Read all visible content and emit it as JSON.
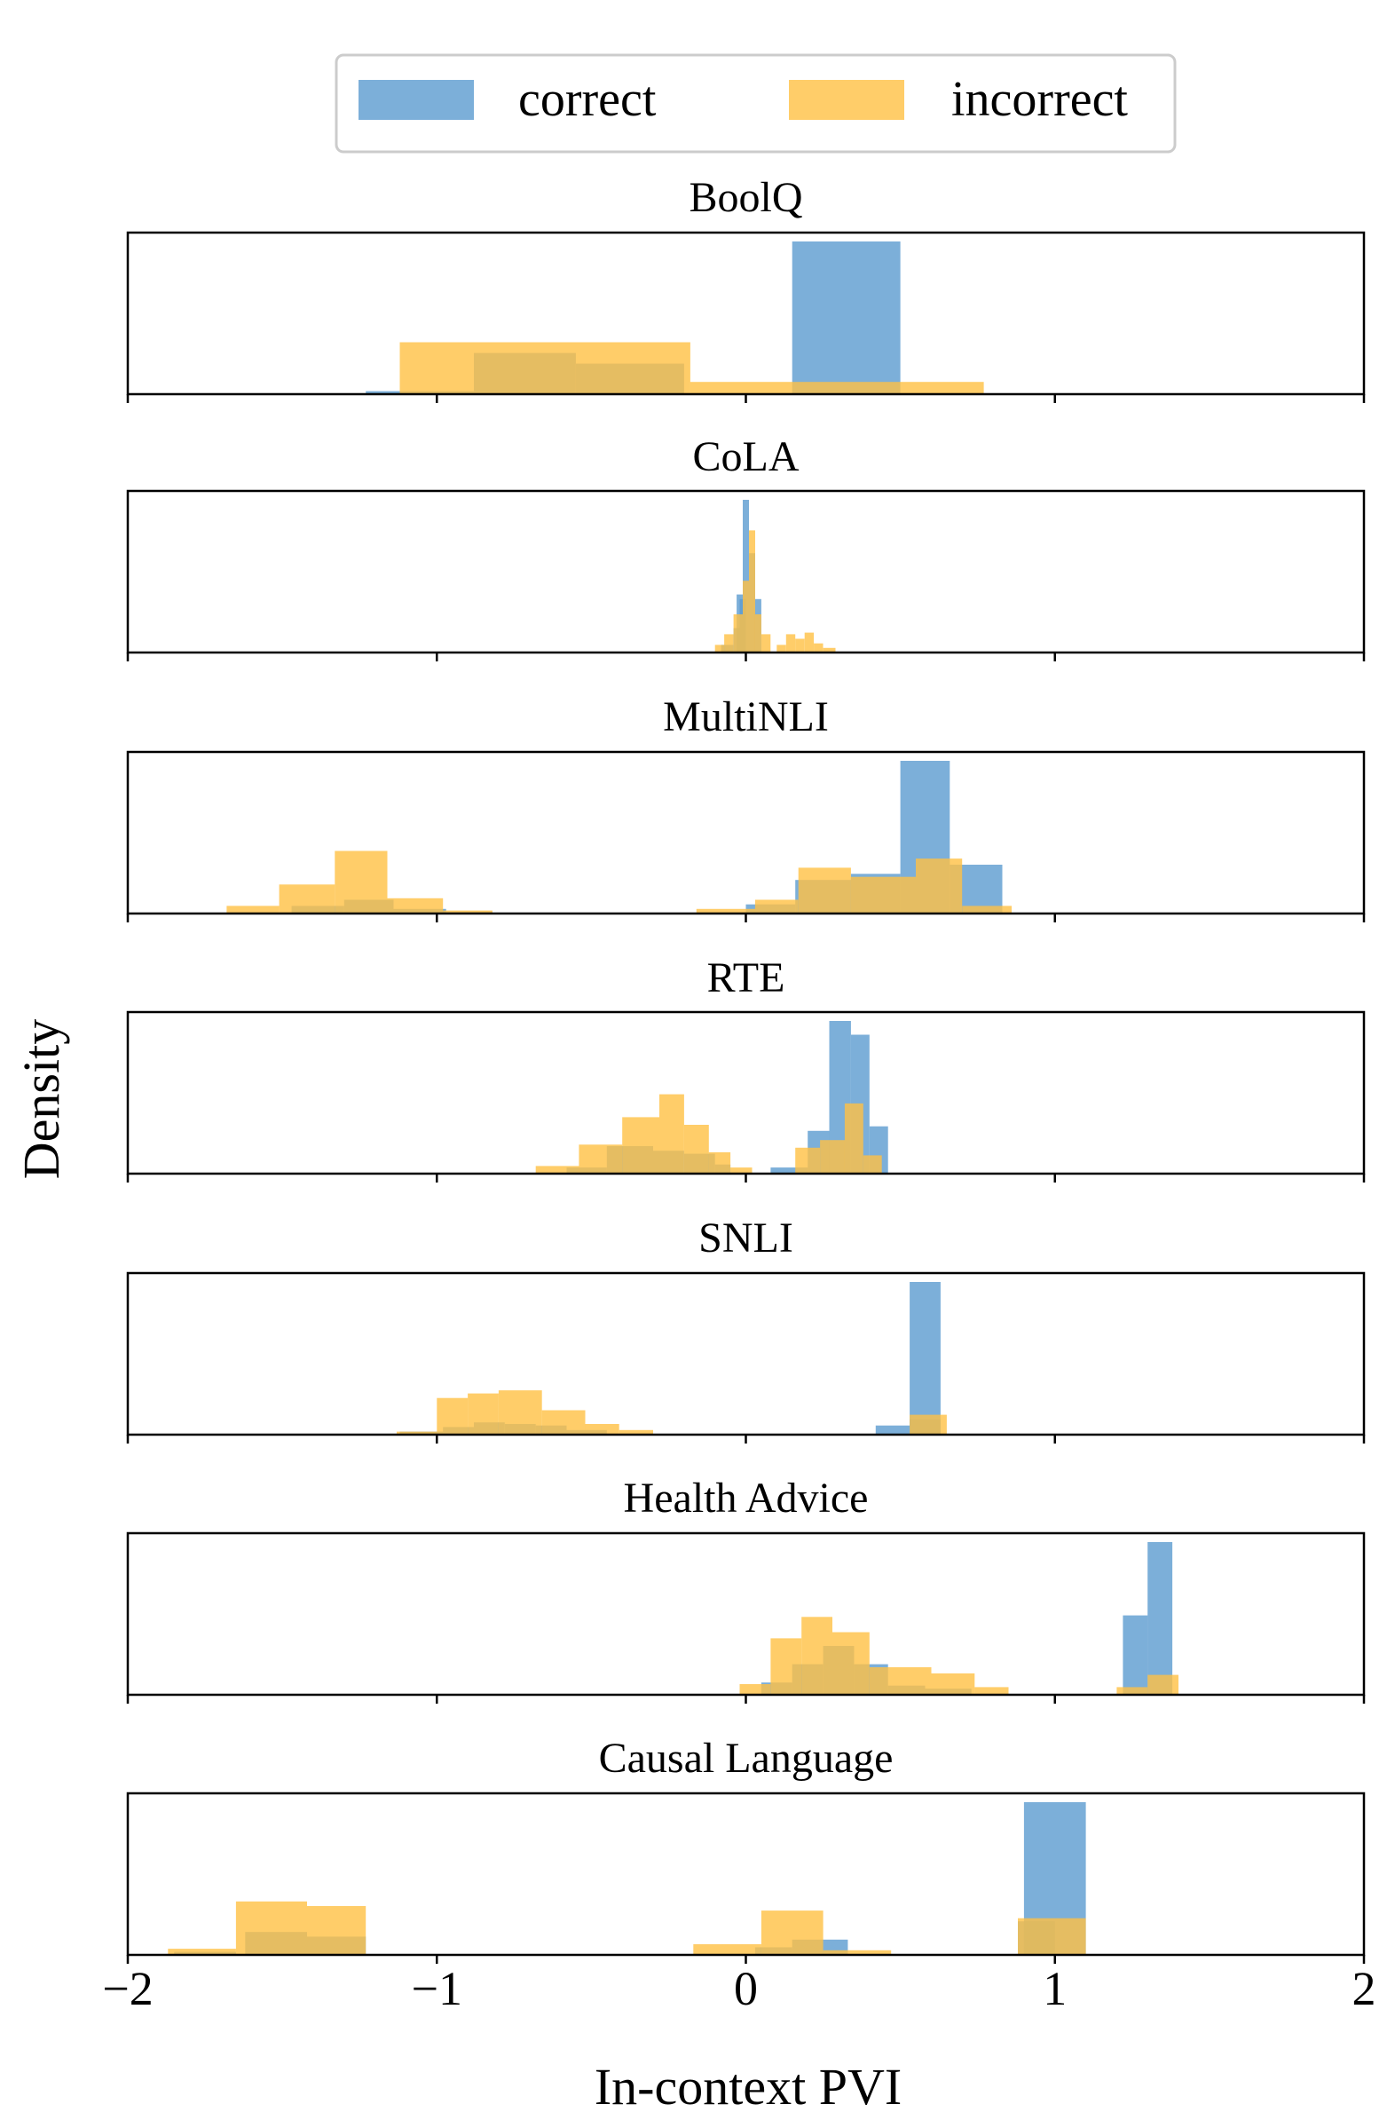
{
  "chart_data": {
    "type": "histogram",
    "xlabel": "In-context PVI",
    "ylabel": "Density",
    "xlim": [
      -2,
      2
    ],
    "x_ticks": [
      -2,
      -1,
      0,
      1,
      2
    ],
    "x_tick_labels": [
      "−2",
      "−1",
      "0",
      "1",
      "2"
    ],
    "legend": {
      "placement": "top-center",
      "entries": [
        {
          "label": "correct",
          "color": "#5b9bd0"
        },
        {
          "label": "incorrect",
          "color": "#ffc144"
        }
      ]
    },
    "colors": {
      "correct": "#5b9bd0",
      "incorrect": "#ffc144"
    },
    "opacity": 0.8,
    "panels": [
      {
        "title": "BoolQ",
        "series": [
          {
            "name": "correct",
            "bins": [
              [
                -1.23,
                -0.88,
                0.02
              ],
              [
                -0.88,
                -0.55,
                0.27
              ],
              [
                -0.55,
                -0.2,
                0.2
              ],
              [
                0.15,
                0.5,
                1.0
              ]
            ]
          },
          {
            "name": "incorrect",
            "bins": [
              [
                -1.12,
                -0.18,
                0.34
              ],
              [
                -0.18,
                0.77,
                0.08
              ]
            ]
          }
        ]
      },
      {
        "title": "CoLA",
        "series": [
          {
            "name": "correct",
            "bins": [
              [
                -0.08,
                -0.04,
                0.05
              ],
              [
                -0.04,
                -0.02,
                0.16
              ],
              [
                -0.02,
                0.0,
                0.35
              ],
              [
                -0.03,
                -0.01,
                0.38
              ],
              [
                -0.01,
                0.01,
                1.0
              ],
              [
                0.01,
                0.03,
                0.65
              ],
              [
                0.03,
                0.05,
                0.35
              ]
            ]
          },
          {
            "name": "incorrect",
            "bins": [
              [
                -0.1,
                -0.07,
                0.05
              ],
              [
                -0.07,
                -0.04,
                0.12
              ],
              [
                -0.04,
                -0.01,
                0.25
              ],
              [
                -0.01,
                0.01,
                0.47
              ],
              [
                0.01,
                0.03,
                0.8
              ],
              [
                0.03,
                0.05,
                0.25
              ],
              [
                0.05,
                0.08,
                0.12
              ],
              [
                0.1,
                0.13,
                0.05
              ],
              [
                0.13,
                0.16,
                0.12
              ],
              [
                0.16,
                0.19,
                0.09
              ],
              [
                0.19,
                0.22,
                0.13
              ],
              [
                0.22,
                0.25,
                0.06
              ],
              [
                0.25,
                0.29,
                0.03
              ]
            ]
          }
        ]
      },
      {
        "title": "MultiNLI",
        "series": [
          {
            "name": "correct",
            "bins": [
              [
                -1.47,
                -1.3,
                0.05
              ],
              [
                -1.3,
                -1.14,
                0.09
              ],
              [
                -1.14,
                -0.97,
                0.03
              ],
              [
                -0.97,
                -0.82,
                0.01
              ],
              [
                0.0,
                0.16,
                0.06
              ],
              [
                0.16,
                0.34,
                0.22
              ],
              [
                0.34,
                0.5,
                0.26
              ],
              [
                0.5,
                0.66,
                1.0
              ],
              [
                0.66,
                0.83,
                0.32
              ]
            ]
          },
          {
            "name": "incorrect",
            "bins": [
              [
                -1.68,
                -1.51,
                0.05
              ],
              [
                -1.51,
                -1.33,
                0.19
              ],
              [
                -1.33,
                -1.16,
                0.41
              ],
              [
                -1.16,
                -0.98,
                0.1
              ],
              [
                -0.98,
                -0.82,
                0.02
              ],
              [
                -0.16,
                0.03,
                0.03
              ],
              [
                0.03,
                0.17,
                0.09
              ],
              [
                0.17,
                0.34,
                0.3
              ],
              [
                0.34,
                0.55,
                0.24
              ],
              [
                0.55,
                0.7,
                0.36
              ],
              [
                0.7,
                0.86,
                0.05
              ]
            ]
          }
        ]
      },
      {
        "title": "RTE",
        "series": [
          {
            "name": "correct",
            "bins": [
              [
                -0.58,
                -0.45,
                0.04
              ],
              [
                -0.45,
                -0.3,
                0.18
              ],
              [
                -0.3,
                -0.2,
                0.15
              ],
              [
                -0.2,
                -0.1,
                0.13
              ],
              [
                -0.1,
                -0.05,
                0.06
              ],
              [
                0.08,
                0.2,
                0.04
              ],
              [
                0.2,
                0.27,
                0.28
              ],
              [
                0.27,
                0.34,
                1.0
              ],
              [
                0.34,
                0.4,
                0.91
              ],
              [
                0.4,
                0.46,
                0.31
              ]
            ]
          },
          {
            "name": "incorrect",
            "bins": [
              [
                -0.68,
                -0.54,
                0.05
              ],
              [
                -0.54,
                -0.4,
                0.19
              ],
              [
                -0.4,
                -0.28,
                0.37
              ],
              [
                -0.28,
                -0.2,
                0.52
              ],
              [
                -0.2,
                -0.12,
                0.32
              ],
              [
                -0.12,
                -0.05,
                0.14
              ],
              [
                -0.05,
                0.02,
                0.04
              ],
              [
                0.16,
                0.24,
                0.17
              ],
              [
                0.24,
                0.32,
                0.22
              ],
              [
                0.32,
                0.38,
                0.46
              ],
              [
                0.38,
                0.44,
                0.12
              ]
            ]
          }
        ]
      },
      {
        "title": "SNLI",
        "series": [
          {
            "name": "correct",
            "bins": [
              [
                -1.12,
                -0.98,
                0.02
              ],
              [
                -0.98,
                -0.88,
                0.05
              ],
              [
                -0.88,
                -0.78,
                0.08
              ],
              [
                -0.78,
                -0.68,
                0.07
              ],
              [
                -0.68,
                -0.58,
                0.06
              ],
              [
                -0.58,
                -0.45,
                0.03
              ],
              [
                0.42,
                0.53,
                0.06
              ],
              [
                0.53,
                0.63,
                0.1
              ],
              [
                0.53,
                0.63,
                1.0
              ]
            ]
          },
          {
            "name": "incorrect",
            "bins": [
              [
                -1.13,
                -1.0,
                0.02
              ],
              [
                -1.0,
                -0.9,
                0.24
              ],
              [
                -0.9,
                -0.8,
                0.27
              ],
              [
                -0.8,
                -0.66,
                0.29
              ],
              [
                -0.66,
                -0.52,
                0.16
              ],
              [
                -0.52,
                -0.41,
                0.07
              ],
              [
                -0.41,
                -0.3,
                0.03
              ],
              [
                0.53,
                0.65,
                0.13
              ]
            ]
          }
        ]
      },
      {
        "title": "Health Advice",
        "series": [
          {
            "name": "correct",
            "bins": [
              [
                0.05,
                0.15,
                0.08
              ],
              [
                0.15,
                0.25,
                0.2
              ],
              [
                0.25,
                0.35,
                0.32
              ],
              [
                0.35,
                0.46,
                0.2
              ],
              [
                0.46,
                0.58,
                0.06
              ],
              [
                0.58,
                0.73,
                0.04
              ],
              [
                1.22,
                1.3,
                0.52
              ],
              [
                1.3,
                1.38,
                1.0
              ]
            ]
          },
          {
            "name": "incorrect",
            "bins": [
              [
                -0.02,
                0.08,
                0.07
              ],
              [
                0.08,
                0.18,
                0.37
              ],
              [
                0.18,
                0.28,
                0.51
              ],
              [
                0.28,
                0.4,
                0.41
              ],
              [
                0.4,
                0.6,
                0.18
              ],
              [
                0.6,
                0.74,
                0.14
              ],
              [
                0.74,
                0.85,
                0.05
              ],
              [
                1.2,
                1.3,
                0.05
              ],
              [
                1.3,
                1.4,
                0.13
              ]
            ]
          }
        ]
      },
      {
        "title": "Causal Language",
        "series": [
          {
            "name": "correct",
            "bins": [
              [
                -1.85,
                -1.65,
                0.02
              ],
              [
                -1.62,
                -1.42,
                0.15
              ],
              [
                -1.42,
                -1.23,
                0.12
              ],
              [
                0.15,
                0.33,
                0.1
              ],
              [
                0.03,
                0.15,
                0.05
              ],
              [
                0.9,
                1.1,
                1.0
              ],
              [
                0.88,
                1.0,
                0.22
              ]
            ]
          },
          {
            "name": "incorrect",
            "bins": [
              [
                -1.87,
                -1.65,
                0.04
              ],
              [
                -1.65,
                -1.42,
                0.35
              ],
              [
                -1.42,
                -1.23,
                0.32
              ],
              [
                -0.17,
                0.05,
                0.07
              ],
              [
                0.05,
                0.25,
                0.29
              ],
              [
                0.25,
                0.47,
                0.03
              ],
              [
                0.88,
                1.1,
                0.24
              ]
            ]
          }
        ]
      }
    ]
  }
}
